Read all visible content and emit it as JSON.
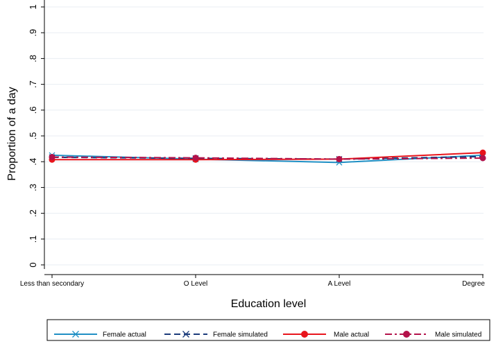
{
  "chart_data": {
    "type": "line",
    "xlabel": "Education level",
    "ylabel": "Proportion of a day",
    "categories": [
      "Less than secondary",
      "O Level",
      "A Level",
      "Degree"
    ],
    "ylim": [
      0,
      1
    ],
    "yticks": [
      "0",
      ".1",
      ".2",
      ".3",
      ".4",
      ".5",
      ".6",
      ".7",
      ".8",
      ".9",
      "1"
    ],
    "grid": true,
    "legend": "bottom",
    "series": [
      {
        "name": "Female actual",
        "values": [
          0.425,
          0.41,
          0.397,
          0.425
        ],
        "color": "#1f8fc4",
        "dash": "solid",
        "marker": "x"
      },
      {
        "name": "Female simulated",
        "values": [
          0.417,
          0.413,
          0.41,
          0.42
        ],
        "color": "#1a3a7a",
        "dash": "dashed",
        "marker": "x"
      },
      {
        "name": "Male actual",
        "values": [
          0.408,
          0.408,
          0.41,
          0.435
        ],
        "color": "#e8141b",
        "dash": "solid",
        "marker": "circle"
      },
      {
        "name": "Male simulated",
        "values": [
          0.418,
          0.415,
          0.41,
          0.414
        ],
        "color": "#b3124a",
        "dash": "dashdot",
        "marker": "circle"
      }
    ]
  }
}
